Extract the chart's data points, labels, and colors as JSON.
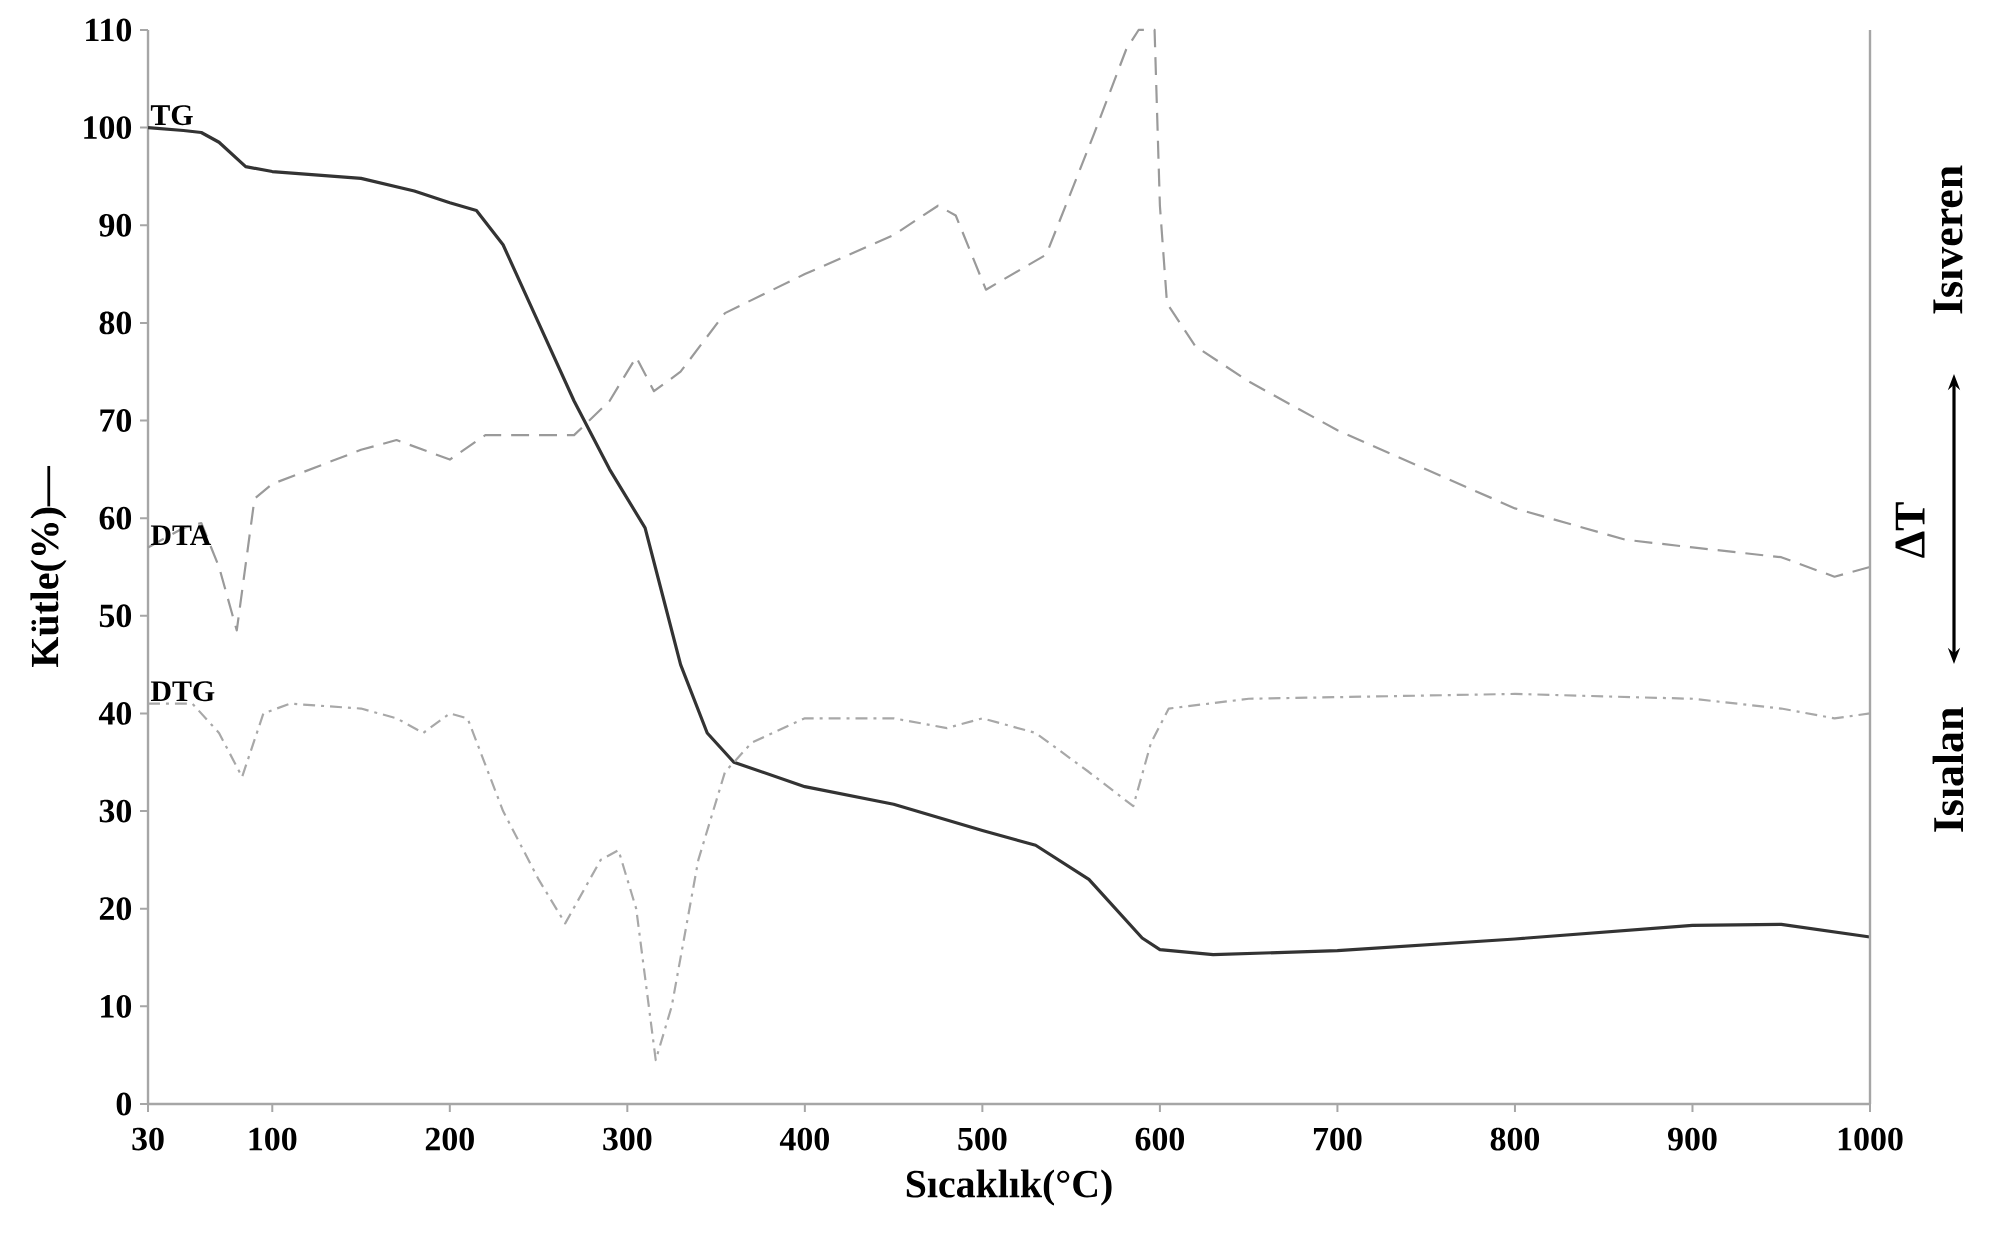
{
  "chart_data": {
    "type": "line",
    "xlabel": "Sıcaklık(°C)",
    "ylabel": "Kütle(%)—",
    "y2label": "ΔT",
    "annotations": [
      "Isıveren",
      "Isıalan"
    ],
    "xlim": [
      30,
      1000
    ],
    "ylim": [
      0,
      110
    ],
    "xticks": [
      30,
      100,
      200,
      300,
      400,
      500,
      600,
      700,
      800,
      900,
      1000
    ],
    "yticks": [
      0,
      10,
      20,
      30,
      40,
      50,
      60,
      70,
      80,
      90,
      100,
      110
    ],
    "series": [
      {
        "name": "TG",
        "color": "#333333",
        "line_style": "solid",
        "x": [
          30,
          50,
          60,
          70,
          85,
          100,
          150,
          180,
          200,
          215,
          230,
          250,
          270,
          290,
          310,
          320,
          330,
          345,
          360,
          400,
          450,
          500,
          530,
          560,
          590,
          600,
          630,
          700,
          800,
          900,
          950,
          1000
        ],
        "values": [
          100,
          99.7,
          99.5,
          98.5,
          96,
          95.5,
          94.8,
          93.5,
          92.3,
          91.5,
          88,
          80,
          72,
          65,
          59,
          52,
          45,
          38,
          35,
          32.5,
          30.7,
          28,
          26.5,
          23,
          17,
          15.8,
          15.3,
          15.7,
          16.9,
          18.3,
          18.4,
          17.1
        ]
      },
      {
        "name": "DTA",
        "color": "#9a9a9a",
        "line_style": "dashed",
        "x": [
          30,
          50,
          60,
          70,
          80,
          90,
          100,
          150,
          170,
          200,
          220,
          240,
          270,
          290,
          305,
          315,
          330,
          355,
          400,
          450,
          475,
          485,
          502,
          536,
          563,
          581,
          588,
          597,
          600,
          604,
          620,
          650,
          700,
          800,
          862,
          900,
          950,
          980,
          1000
        ],
        "values": [
          57,
          59,
          59.5,
          55,
          48.5,
          62,
          63.5,
          67,
          68,
          66,
          68.5,
          68.5,
          68.5,
          72,
          76.5,
          73,
          75,
          81,
          85,
          89,
          92,
          91,
          83.4,
          87,
          99.4,
          108,
          110,
          110,
          92,
          82,
          77.6,
          74,
          69,
          61,
          57.8,
          57,
          56,
          54,
          55
        ]
      },
      {
        "name": "DTG",
        "color": "#a8a8a8",
        "line_style": "dashdot",
        "x": [
          30,
          55,
          70,
          83,
          95,
          110,
          150,
          170,
          185,
          200,
          210,
          230,
          250,
          265,
          285,
          295,
          305,
          316,
          325,
          340,
          355,
          370,
          400,
          450,
          480,
          500,
          530,
          560,
          585,
          595,
          605,
          650,
          800,
          900,
          950,
          980,
          1000
        ],
        "values": [
          41,
          41,
          38,
          33.5,
          40,
          41,
          40.5,
          39.5,
          38,
          40,
          39.5,
          30,
          23,
          18.5,
          25,
          26,
          20,
          4.5,
          10,
          25,
          34,
          37,
          39.5,
          39.5,
          38.5,
          39.5,
          38,
          34,
          30.5,
          37,
          40.5,
          41.5,
          42,
          41.5,
          40.5,
          39.5,
          40
        ]
      }
    ]
  }
}
